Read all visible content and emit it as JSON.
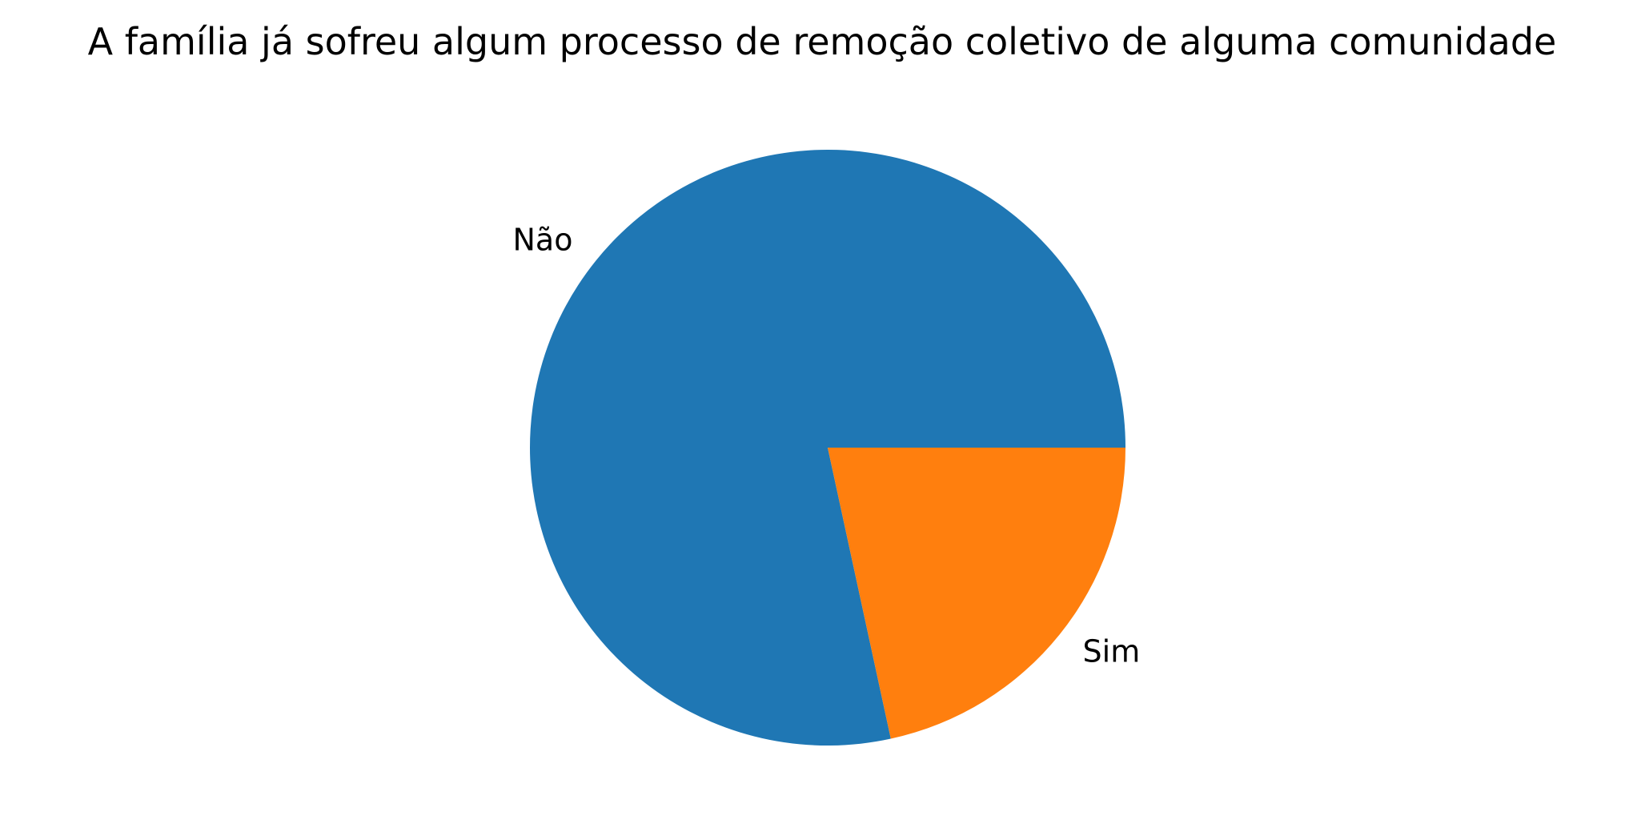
{
  "chart_data": {
    "type": "pie",
    "title": "A família já sofreu algum processo de remoção coletivo de alguma comunidade",
    "categories": [
      "Não",
      "Sim"
    ],
    "values": [
      78.4,
      21.6
    ],
    "colors": [
      "#1f77b4",
      "#ff7f0e"
    ],
    "start_angle_deg": 0,
    "direction": "counterclockwise",
    "legend": "none"
  }
}
